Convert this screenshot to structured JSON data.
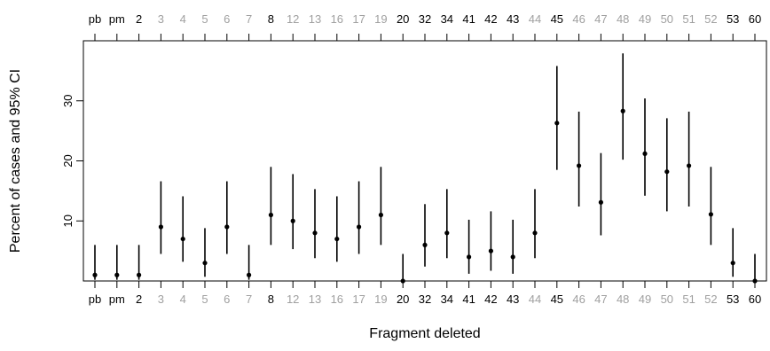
{
  "chart_data": {
    "type": "scatter",
    "subtype": "point-with-error-bars",
    "xlabel": "Fragment deleted",
    "ylabel": "Percent of cases and 95% CI",
    "ylim": [
      0,
      40
    ],
    "yticks": [
      10,
      20,
      30
    ],
    "grid": false,
    "legend": "none",
    "label_colors": {
      "black": "#000000",
      "grey": "#a0a0a0"
    },
    "categories": [
      "pb",
      "pm",
      "2",
      "3",
      "4",
      "5",
      "6",
      "7",
      "8",
      "12",
      "13",
      "16",
      "17",
      "19",
      "20",
      "32",
      "34",
      "41",
      "42",
      "43",
      "44",
      "45",
      "46",
      "47",
      "48",
      "49",
      "50",
      "51",
      "52",
      "53",
      "60"
    ],
    "label_color_key": [
      "black",
      "black",
      "black",
      "grey",
      "grey",
      "grey",
      "grey",
      "grey",
      "black",
      "grey",
      "grey",
      "grey",
      "grey",
      "grey",
      "black",
      "black",
      "black",
      "black",
      "black",
      "black",
      "grey",
      "black",
      "grey",
      "grey",
      "grey",
      "grey",
      "grey",
      "grey",
      "grey",
      "black",
      "black"
    ],
    "values": [
      1,
      1,
      1,
      9,
      7,
      3,
      9,
      1,
      11,
      10,
      8,
      7,
      9,
      11,
      0,
      6,
      8,
      4,
      5,
      4,
      8,
      26.3,
      19.2,
      13.1,
      28.3,
      21.2,
      18.2,
      19.2,
      11.1,
      3,
      0
    ],
    "ci_lower": [
      0.2,
      0.2,
      0.2,
      4.5,
      3.2,
      0.7,
      4.5,
      0.2,
      6,
      5.3,
      3.8,
      3.2,
      4.5,
      6,
      0,
      2.4,
      3.8,
      1.2,
      1.7,
      1.2,
      3.8,
      18.5,
      12.4,
      7.6,
      20.2,
      14.2,
      11.6,
      12.4,
      6,
      0.7,
      0
    ],
    "ci_upper": [
      6,
      6,
      6,
      16.6,
      14.1,
      8.8,
      16.6,
      6,
      19,
      17.8,
      15.3,
      14.1,
      16.6,
      19,
      4.5,
      12.8,
      15.3,
      10.2,
      11.6,
      10.2,
      15.3,
      35.8,
      28.2,
      21.3,
      37.9,
      30.4,
      27.1,
      28.2,
      19,
      8.8,
      4.5
    ]
  }
}
